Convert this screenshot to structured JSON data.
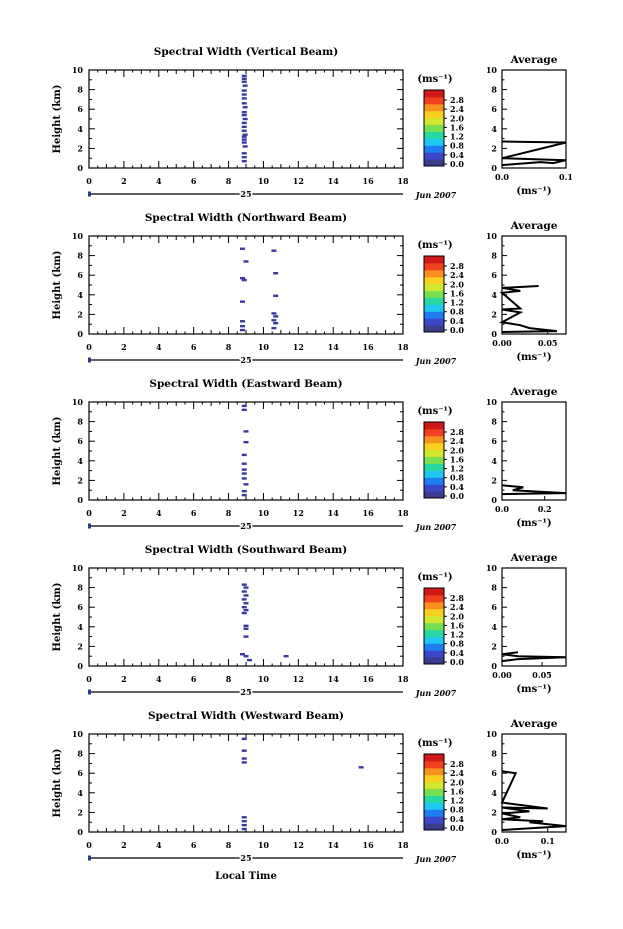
{
  "figure": {
    "x_axis_label": "Local Time",
    "date_label": "Jun 2007",
    "day_label": "25",
    "colorbar_unit": "(ms⁻¹)",
    "colorbar_ticks": [
      "0.0",
      "0.4",
      "0.8",
      "1.2",
      "1.6",
      "2.0",
      "2.4",
      "2.8"
    ],
    "colorbar_colors": [
      "#3c3c8c",
      "#3a48c8",
      "#1e7ef0",
      "#1ec8f0",
      "#28d8a0",
      "#78e050",
      "#d0e830",
      "#f8d020",
      "#f89020",
      "#f04020",
      "#d01818"
    ],
    "average_title": "Average",
    "average_unit": "(ms⁻¹)"
  },
  "chart_data": [
    {
      "type": "heatmap",
      "title": "Spectral Width (Vertical Beam)",
      "ylabel": "Height (km)",
      "xlabel": "Local Time",
      "xlim": [
        0,
        18
      ],
      "ylim": [
        0,
        10
      ],
      "x_ticks": [
        0,
        2,
        4,
        6,
        8,
        10,
        12,
        14,
        16,
        18
      ],
      "y_ticks": [
        0,
        2,
        4,
        6,
        8,
        10
      ],
      "colorbar_range": [
        0.0,
        2.8
      ],
      "points": [
        [
          8.9,
          9.4
        ],
        [
          8.9,
          9.1
        ],
        [
          8.9,
          8.8
        ],
        [
          8.95,
          8.4
        ],
        [
          8.9,
          7.9
        ],
        [
          8.9,
          7.5
        ],
        [
          8.9,
          7.1
        ],
        [
          8.9,
          6.6
        ],
        [
          8.95,
          6.2
        ],
        [
          8.9,
          5.7
        ],
        [
          8.9,
          5.4
        ],
        [
          8.95,
          5.0
        ],
        [
          8.9,
          4.6
        ],
        [
          8.9,
          4.2
        ],
        [
          8.9,
          3.8
        ],
        [
          8.95,
          3.4
        ],
        [
          8.9,
          3.2
        ],
        [
          8.9,
          2.9
        ],
        [
          8.9,
          2.6
        ],
        [
          8.95,
          2.2
        ],
        [
          8.9,
          1.5
        ],
        [
          8.9,
          1.1
        ],
        [
          8.9,
          0.7
        ]
      ],
      "average": {
        "title": "Average",
        "xlabel": "(ms⁻¹)",
        "xlim": [
          0,
          0.1
        ],
        "ylim": [
          0,
          10
        ],
        "x_ticks": [
          "0.0",
          "0.1"
        ],
        "x_tick_values": [
          0,
          0.1
        ],
        "profile": [
          [
            0.0,
            0.3
          ],
          [
            0.06,
            0.6
          ],
          [
            0.08,
            0.5
          ],
          [
            0.1,
            0.8
          ],
          [
            0.0,
            1.0
          ],
          [
            0.1,
            2.6
          ],
          [
            0.0,
            2.7
          ]
        ]
      }
    },
    {
      "type": "heatmap",
      "title": "Spectral Width (Northward Beam)",
      "ylabel": "Height (km)",
      "xlabel": "Local Time",
      "xlim": [
        0,
        18
      ],
      "ylim": [
        0,
        10
      ],
      "x_ticks": [
        0,
        2,
        4,
        6,
        8,
        10,
        12,
        14,
        16,
        18
      ],
      "y_ticks": [
        0,
        2,
        4,
        6,
        8,
        10
      ],
      "colorbar_range": [
        0.0,
        2.8
      ],
      "points": [
        [
          8.8,
          8.7
        ],
        [
          9.0,
          7.4
        ],
        [
          8.8,
          5.7
        ],
        [
          8.9,
          5.5
        ],
        [
          8.8,
          3.3
        ],
        [
          8.8,
          1.3
        ],
        [
          8.8,
          0.8
        ],
        [
          8.8,
          0.4
        ],
        [
          10.6,
          8.5
        ],
        [
          10.7,
          6.2
        ],
        [
          10.7,
          3.9
        ],
        [
          10.6,
          2.1
        ],
        [
          10.7,
          1.8
        ],
        [
          10.6,
          1.4
        ],
        [
          10.7,
          1.1
        ],
        [
          10.6,
          0.6
        ]
      ],
      "average": {
        "title": "Average",
        "xlabel": "(ms⁻¹)",
        "xlim": [
          0,
          0.07
        ],
        "ylim": [
          0,
          10
        ],
        "x_ticks": [
          "0.00",
          "0.05"
        ],
        "x_tick_values": [
          0,
          0.05
        ],
        "profile": [
          [
            0.0,
            0.2
          ],
          [
            0.06,
            0.3
          ],
          [
            0.03,
            0.6
          ],
          [
            0.02,
            0.9
          ],
          [
            0.0,
            1.2
          ],
          [
            0.02,
            2.2
          ],
          [
            0.0,
            2.5
          ],
          [
            0.02,
            2.6
          ],
          [
            0.0,
            4.2
          ],
          [
            0.02,
            4.4
          ],
          [
            0.0,
            4.7
          ],
          [
            0.04,
            4.9
          ]
        ]
      }
    },
    {
      "type": "heatmap",
      "title": "Spectral Width (Eastward Beam)",
      "ylabel": "Height (km)",
      "xlabel": "Local Time",
      "xlim": [
        0,
        18
      ],
      "ylim": [
        0,
        10
      ],
      "x_ticks": [
        0,
        2,
        4,
        6,
        8,
        10,
        12,
        14,
        16,
        18
      ],
      "y_ticks": [
        0,
        2,
        4,
        6,
        8,
        10
      ],
      "colorbar_range": [
        0.0,
        2.8
      ],
      "points": [
        [
          8.9,
          9.6
        ],
        [
          8.9,
          9.2
        ],
        [
          9.0,
          7.0
        ],
        [
          9.0,
          5.9
        ],
        [
          8.9,
          4.6
        ],
        [
          8.9,
          3.7
        ],
        [
          8.9,
          3.1
        ],
        [
          8.9,
          2.7
        ],
        [
          8.9,
          2.2
        ],
        [
          9.0,
          1.6
        ],
        [
          8.9,
          0.9
        ],
        [
          8.9,
          0.5
        ]
      ],
      "average": {
        "title": "Average",
        "xlabel": "(ms⁻¹)",
        "xlim": [
          0,
          0.3
        ],
        "ylim": [
          0,
          10
        ],
        "x_ticks": [
          "0.0",
          "0.2"
        ],
        "x_tick_values": [
          0,
          0.2
        ],
        "profile": [
          [
            0.0,
            0.6
          ],
          [
            0.3,
            0.7
          ],
          [
            0.05,
            1.0
          ],
          [
            0.1,
            1.3
          ],
          [
            0.0,
            1.5
          ]
        ]
      }
    },
    {
      "type": "heatmap",
      "title": "Spectral Width (Southward Beam)",
      "ylabel": "Height (km)",
      "xlabel": "Local Time",
      "xlim": [
        0,
        18
      ],
      "ylim": [
        0,
        10
      ],
      "x_ticks": [
        0,
        2,
        4,
        6,
        8,
        10,
        12,
        14,
        16,
        18
      ],
      "y_ticks": [
        0,
        2,
        4,
        6,
        8,
        10
      ],
      "colorbar_range": [
        0.0,
        2.8
      ],
      "points": [
        [
          8.9,
          8.3
        ],
        [
          9.0,
          8.0
        ],
        [
          8.9,
          7.6
        ],
        [
          9.0,
          7.2
        ],
        [
          8.9,
          6.8
        ],
        [
          9.0,
          6.4
        ],
        [
          8.9,
          6.0
        ],
        [
          9.0,
          5.7
        ],
        [
          8.9,
          5.4
        ],
        [
          9.0,
          4.1
        ],
        [
          9.0,
          3.8
        ],
        [
          9.0,
          3.0
        ],
        [
          8.8,
          1.2
        ],
        [
          9.0,
          1.0
        ],
        [
          9.2,
          0.6
        ],
        [
          11.3,
          1.0
        ]
      ],
      "average": {
        "title": "Average",
        "xlabel": "(ms⁻¹)",
        "xlim": [
          0,
          0.08
        ],
        "ylim": [
          0,
          10
        ],
        "x_ticks": [
          "0.00",
          "0.05"
        ],
        "x_tick_values": [
          0,
          0.05
        ],
        "profile": [
          [
            0.0,
            0.5
          ],
          [
            0.02,
            0.7
          ],
          [
            0.08,
            0.9
          ],
          [
            0.02,
            1.0
          ],
          [
            0.0,
            1.2
          ],
          [
            0.02,
            1.4
          ]
        ]
      }
    },
    {
      "type": "heatmap",
      "title": "Spectral Width (Westward Beam)",
      "ylabel": "Height (km)",
      "xlabel": "Local Time",
      "xlim": [
        0,
        18
      ],
      "ylim": [
        0,
        10
      ],
      "x_ticks": [
        0,
        2,
        4,
        6,
        8,
        10,
        12,
        14,
        16,
        18
      ],
      "y_ticks": [
        0,
        2,
        4,
        6,
        8,
        10
      ],
      "colorbar_range": [
        0.0,
        2.8
      ],
      "points": [
        [
          8.9,
          9.5
        ],
        [
          8.9,
          8.3
        ],
        [
          8.9,
          7.5
        ],
        [
          8.9,
          7.1
        ],
        [
          8.9,
          1.5
        ],
        [
          8.9,
          1.1
        ],
        [
          8.9,
          0.7
        ],
        [
          8.9,
          0.3
        ],
        [
          15.6,
          6.6
        ]
      ],
      "average": {
        "title": "Average",
        "xlabel": "(ms⁻¹)",
        "xlim": [
          0,
          0.14
        ],
        "ylim": [
          0,
          10
        ],
        "x_ticks": [
          "0.0",
          "0.1"
        ],
        "x_tick_values": [
          0,
          0.1
        ],
        "profile": [
          [
            0.0,
            0.2
          ],
          [
            0.14,
            0.6
          ],
          [
            0.06,
            1.0
          ],
          [
            0.09,
            1.1
          ],
          [
            0.0,
            1.3
          ],
          [
            0.04,
            1.5
          ],
          [
            0.0,
            1.9
          ],
          [
            0.06,
            2.1
          ],
          [
            0.0,
            2.5
          ],
          [
            0.1,
            2.4
          ],
          [
            0.0,
            3.0
          ],
          [
            0.03,
            6.0
          ],
          [
            0.0,
            6.2
          ]
        ]
      }
    }
  ]
}
